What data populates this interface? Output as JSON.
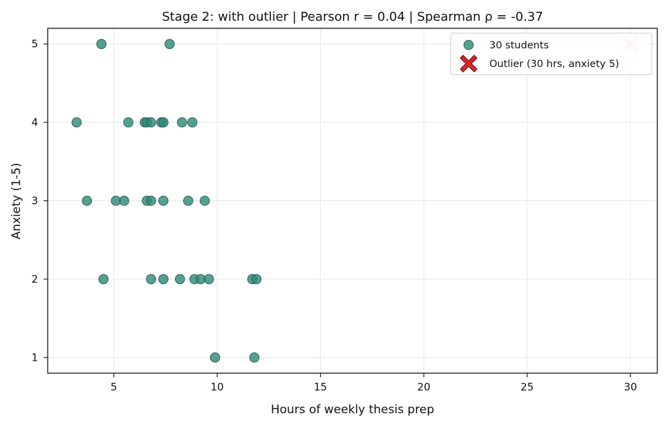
{
  "chart_data": {
    "type": "scatter",
    "title": "Stage 2: with outlier  |  Pearson r = 0.04  |  Spearman ρ = -0.37",
    "xlabel": "Hours of weekly thesis prep",
    "ylabel": "Anxiety (1-5)",
    "xlim": [
      1.8,
      31.3
    ],
    "ylim": [
      0.8,
      5.2
    ],
    "xticks": [
      5,
      10,
      15,
      20,
      25,
      30
    ],
    "yticks": [
      1,
      2,
      3,
      4,
      5
    ],
    "grid": true,
    "legend_placement": "top-right",
    "series": [
      {
        "name": "30 students",
        "color": "#2a8a78",
        "marker": "circle",
        "points": [
          {
            "x": 4.4,
            "y": 5
          },
          {
            "x": 7.7,
            "y": 5
          },
          {
            "x": 3.2,
            "y": 4
          },
          {
            "x": 5.7,
            "y": 4
          },
          {
            "x": 6.5,
            "y": 4
          },
          {
            "x": 6.6,
            "y": 4
          },
          {
            "x": 6.8,
            "y": 4
          },
          {
            "x": 7.3,
            "y": 4
          },
          {
            "x": 7.4,
            "y": 4
          },
          {
            "x": 8.3,
            "y": 4
          },
          {
            "x": 8.8,
            "y": 4
          },
          {
            "x": 3.7,
            "y": 3
          },
          {
            "x": 5.1,
            "y": 3
          },
          {
            "x": 5.5,
            "y": 3
          },
          {
            "x": 6.6,
            "y": 3
          },
          {
            "x": 6.8,
            "y": 3
          },
          {
            "x": 7.4,
            "y": 3
          },
          {
            "x": 8.6,
            "y": 3
          },
          {
            "x": 9.4,
            "y": 3
          },
          {
            "x": 4.5,
            "y": 2
          },
          {
            "x": 6.8,
            "y": 2
          },
          {
            "x": 7.4,
            "y": 2
          },
          {
            "x": 8.2,
            "y": 2
          },
          {
            "x": 8.9,
            "y": 2
          },
          {
            "x": 9.2,
            "y": 2
          },
          {
            "x": 9.6,
            "y": 2
          },
          {
            "x": 11.7,
            "y": 2
          },
          {
            "x": 11.9,
            "y": 2
          },
          {
            "x": 9.9,
            "y": 1
          },
          {
            "x": 11.8,
            "y": 1
          }
        ]
      },
      {
        "name": "Outlier (30 hrs, anxiety 5)",
        "color": "#d42a2a",
        "marker": "x-filled",
        "points": [
          {
            "x": 30,
            "y": 5
          }
        ]
      }
    ]
  }
}
